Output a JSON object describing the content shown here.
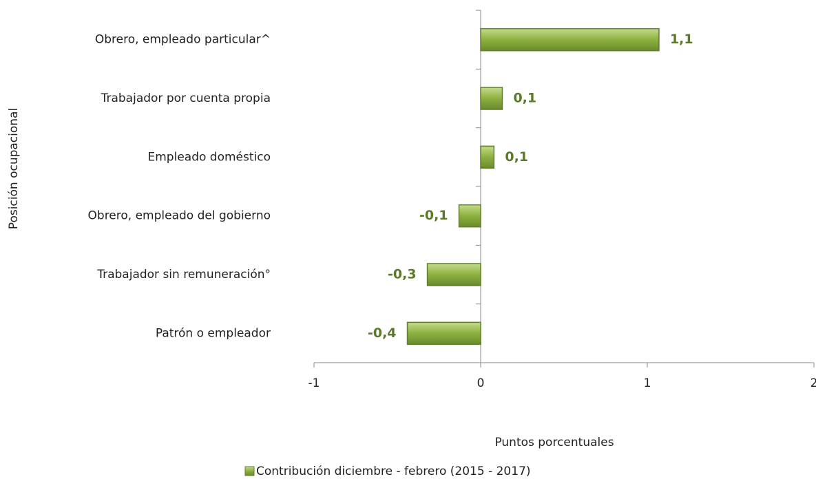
{
  "chart_data": {
    "type": "bar",
    "orientation": "horizontal",
    "categories": [
      "Obrero, empleado particular^",
      "Trabajador por cuenta propia",
      "Empleado doméstico",
      "Obrero, empleado del gobierno",
      "Trabajador sin remuneración°",
      "Patrón o empleador"
    ],
    "series": [
      {
        "name": "Contribución diciembre - febrero (2015 - 2017)",
        "color": "#8db040",
        "values": [
          1.07,
          0.13,
          0.08,
          -0.13,
          -0.32,
          -0.44
        ],
        "value_labels": [
          "1,1",
          "0,1",
          "0,1",
          "-0,1",
          "-0,3",
          "-0,4"
        ]
      }
    ],
    "xlim": [
      -1,
      2
    ],
    "xticks": [
      -1,
      0,
      1,
      2
    ],
    "xlabel": "Puntos porcentuales",
    "ylabel": "Posición ocupacional",
    "legend": "bottom"
  }
}
